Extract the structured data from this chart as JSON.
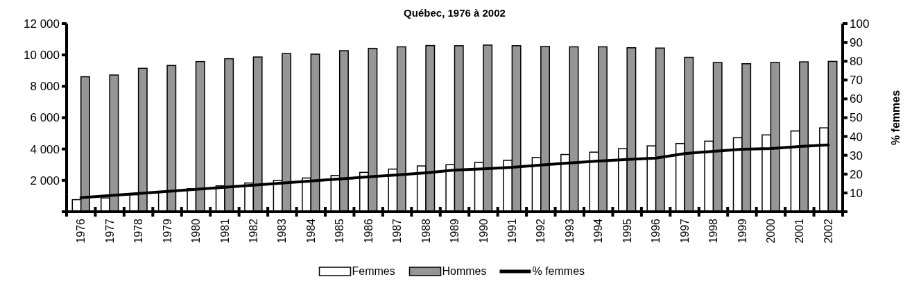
{
  "chart_data": {
    "type": "bar",
    "title": "Québec, 1976 à 2002",
    "y2label": "% femmes",
    "categories": [
      "1976",
      "1977",
      "1978",
      "1979",
      "1980",
      "1981",
      "1982",
      "1983",
      "1984",
      "1985",
      "1986",
      "1987",
      "1988",
      "1989",
      "1990",
      "1991",
      "1992",
      "1993",
      "1994",
      "1995",
      "1996",
      "1997",
      "1998",
      "1999",
      "2000",
      "2001",
      "2002"
    ],
    "series": [
      {
        "name": "Femmes",
        "color": "#ffffff",
        "values": [
          770,
          880,
          1080,
          1270,
          1470,
          1650,
          1830,
          2000,
          2150,
          2310,
          2510,
          2720,
          2920,
          3000,
          3150,
          3280,
          3460,
          3650,
          3800,
          4020,
          4200,
          4350,
          4500,
          4720,
          4900,
          5150,
          5350
        ]
      },
      {
        "name": "Hommes",
        "color": "#969696",
        "values": [
          8610,
          8720,
          9150,
          9330,
          9580,
          9760,
          9870,
          10090,
          10050,
          10270,
          10420,
          10520,
          10600,
          10590,
          10630,
          10590,
          10540,
          10520,
          10520,
          10460,
          10440,
          9850,
          9520,
          9440,
          9520,
          9560,
          9590
        ]
      },
      {
        "name": "% femmes",
        "type": "line",
        "axis": "y2",
        "color": "#000000",
        "values": [
          7.5,
          8.6,
          9.7,
          10.8,
          11.9,
          13,
          14.1,
          15.2,
          16.3,
          17.4,
          18.5,
          19.6,
          20.7,
          22.1,
          22.8,
          23.6,
          24.8,
          25.9,
          26.9,
          27.8,
          28.5,
          30.9,
          32.1,
          33.2,
          33.6,
          34.7,
          35.5
        ]
      }
    ],
    "ylim": [
      0,
      12000
    ],
    "yticks": [
      {
        "value": 0,
        "label": null
      },
      {
        "value": 2000,
        "label": "2 000"
      },
      {
        "value": 4000,
        "label": "4 000"
      },
      {
        "value": 6000,
        "label": "6 000"
      },
      {
        "value": 8000,
        "label": "8 000"
      },
      {
        "value": 10000,
        "label": "10 000"
      },
      {
        "value": 12000,
        "label": "12 000"
      }
    ],
    "y2lim": [
      0,
      100
    ],
    "y2ticks": [
      {
        "value": 0,
        "label": null
      },
      10,
      20,
      30,
      40,
      50,
      60,
      70,
      80,
      90,
      100
    ],
    "grid": false,
    "legend": "bottom",
    "marker": "none",
    "line_style": "solid"
  }
}
